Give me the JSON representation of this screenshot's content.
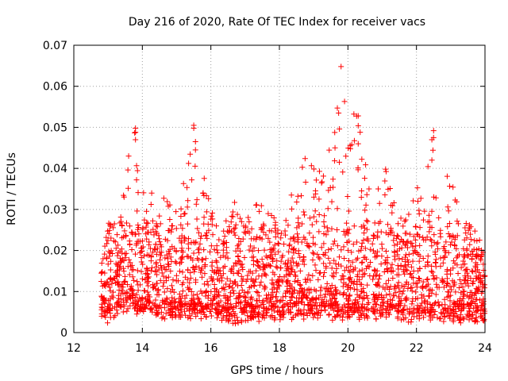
{
  "chart_data": {
    "type": "scatter",
    "title": "Day 216 of 2020, Rate Of TEC Index for receiver vacs",
    "xlabel": "GPS time / hours",
    "ylabel": "ROTI / TECUs",
    "xlim": [
      12,
      24
    ],
    "ylim": [
      0,
      0.07
    ],
    "x_ticks": [
      12,
      14,
      16,
      18,
      20,
      22,
      24
    ],
    "x_tick_labels": [
      "12",
      "14",
      "16",
      "18",
      "20",
      "22",
      "24"
    ],
    "y_ticks": [
      0,
      0.01,
      0.02,
      0.03,
      0.04,
      0.05,
      0.06,
      0.07
    ],
    "y_tick_labels": [
      "0",
      "0.01",
      "0.02",
      "0.03",
      "0.04",
      "0.05",
      "0.06",
      "0.07"
    ],
    "grid": true,
    "marker": "+",
    "colors": {
      "points": "#ff0000",
      "grid": "#a0a0a0",
      "axes": "#000000"
    },
    "series": [
      {
        "name": "vacs",
        "note": "Dense cloud of ~4000 points spanning 12.75-24 h; representative envelope values listed below, cloud mostly between 0.004 and 0.025 TECU.",
        "envelope": [
          {
            "x": 12.8,
            "lo": 0.006,
            "hi": 0.018
          },
          {
            "x": 13.0,
            "lo": 0.004,
            "hi": 0.028
          },
          {
            "x": 13.3,
            "lo": 0.006,
            "hi": 0.025
          },
          {
            "x": 13.6,
            "lo": 0.007,
            "hi": 0.043
          },
          {
            "x": 13.8,
            "lo": 0.006,
            "hi": 0.05
          },
          {
            "x": 14.0,
            "lo": 0.006,
            "hi": 0.037
          },
          {
            "x": 14.5,
            "lo": 0.005,
            "hi": 0.034
          },
          {
            "x": 15.0,
            "lo": 0.005,
            "hi": 0.03
          },
          {
            "x": 15.5,
            "lo": 0.005,
            "hi": 0.05
          },
          {
            "x": 16.0,
            "lo": 0.005,
            "hi": 0.03
          },
          {
            "x": 16.6,
            "lo": 0.004,
            "hi": 0.034
          },
          {
            "x": 17.0,
            "lo": 0.004,
            "hi": 0.028
          },
          {
            "x": 17.6,
            "lo": 0.005,
            "hi": 0.034
          },
          {
            "x": 18.0,
            "lo": 0.005,
            "hi": 0.025
          },
          {
            "x": 18.7,
            "lo": 0.005,
            "hi": 0.042
          },
          {
            "x": 19.3,
            "lo": 0.005,
            "hi": 0.039
          },
          {
            "x": 19.8,
            "lo": 0.005,
            "hi": 0.065
          },
          {
            "x": 20.3,
            "lo": 0.005,
            "hi": 0.053
          },
          {
            "x": 20.7,
            "lo": 0.005,
            "hi": 0.032
          },
          {
            "x": 21.1,
            "lo": 0.005,
            "hi": 0.04
          },
          {
            "x": 21.5,
            "lo": 0.005,
            "hi": 0.028
          },
          {
            "x": 22.0,
            "lo": 0.004,
            "hi": 0.035
          },
          {
            "x": 22.5,
            "lo": 0.005,
            "hi": 0.049
          },
          {
            "x": 23.0,
            "lo": 0.004,
            "hi": 0.039
          },
          {
            "x": 23.5,
            "lo": 0.004,
            "hi": 0.028
          },
          {
            "x": 24.0,
            "lo": 0.004,
            "hi": 0.02
          }
        ],
        "outliers": [
          {
            "x": 19.8,
            "y": 0.0648
          },
          {
            "x": 20.3,
            "y": 0.0528
          },
          {
            "x": 20.3,
            "y": 0.0504
          },
          {
            "x": 15.5,
            "y": 0.0505
          },
          {
            "x": 15.5,
            "y": 0.0498
          },
          {
            "x": 13.8,
            "y": 0.0498
          },
          {
            "x": 13.8,
            "y": 0.0488
          },
          {
            "x": 22.5,
            "y": 0.0492
          },
          {
            "x": 22.5,
            "y": 0.0475
          },
          {
            "x": 22.45,
            "y": 0.047
          },
          {
            "x": 15.55,
            "y": 0.0465
          },
          {
            "x": 15.55,
            "y": 0.0445
          },
          {
            "x": 13.8,
            "y": 0.047
          },
          {
            "x": 13.6,
            "y": 0.043
          },
          {
            "x": 20.3,
            "y": 0.046
          },
          {
            "x": 18.75,
            "y": 0.0424
          },
          {
            "x": 22.45,
            "y": 0.042
          },
          {
            "x": 15.35,
            "y": 0.0412
          },
          {
            "x": 19.75,
            "y": 0.0415
          },
          {
            "x": 21.1,
            "y": 0.0398
          }
        ]
      }
    ]
  }
}
